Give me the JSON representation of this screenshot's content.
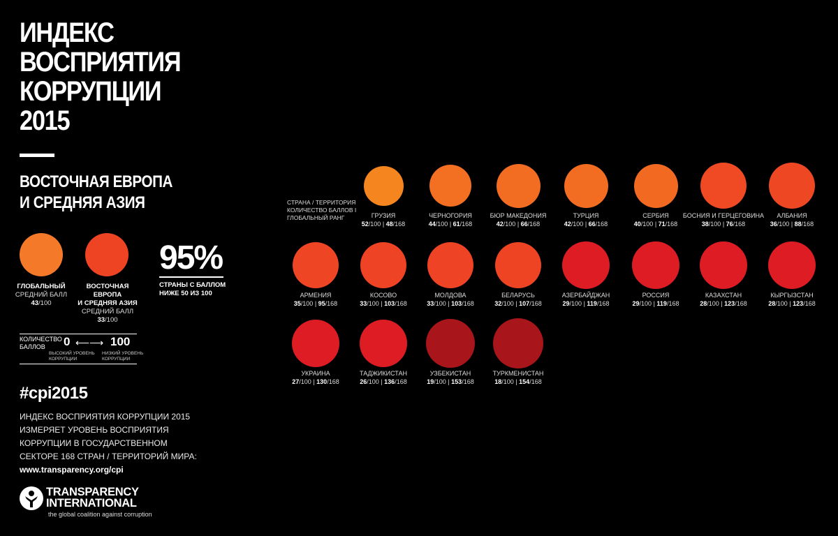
{
  "header": {
    "title_lines": [
      "ИНДЕКС",
      "ВОСПРИЯТИЯ",
      "КОРРУПЦИИ",
      "2015"
    ],
    "subtitle_lines": [
      "ВОСТОЧНАЯ ЕВРОПА",
      "И СРЕДНЯЯ АЗИЯ"
    ]
  },
  "averages": {
    "global": {
      "label": "ГЛОБАЛЬНЫЙ",
      "sub": "СРЕДНИЙ БАЛЛ",
      "score": "43",
      "max": "/100",
      "color": "#f47a2a"
    },
    "region": {
      "label_1": "ВОСТОЧНАЯ ЕВРОПА",
      "label_2": "И СРЕДНЯЯ АЗИЯ",
      "sub": "СРЕДНИЙ БАЛЛ",
      "score": "33",
      "max": "/100",
      "color": "#ee4424"
    }
  },
  "stat": {
    "value": "95%",
    "label": "СТРАНЫ С БАЛЛОМ НИЖЕ 50 ИЗ 100"
  },
  "scale": {
    "title": "КОЛИЧЕСТВО БАЛЛОВ",
    "low": "0",
    "high": "100",
    "arrow": "⟵⟶",
    "low_text": "ВЫСОКИЙ УРОВЕНЬ КОРРУПЦИИ",
    "high_text": "НИЗКИЙ УРОВЕНЬ КОРРУПЦИИ"
  },
  "hashtag": "#cpi2015",
  "description": {
    "text": "ИНДЕКС ВОСПРИЯТИЯ КОРРУПЦИИ 2015 ИЗМЕРЯЕТ УРОВЕНЬ ВОСПРИЯТИЯ КОРРУПЦИИ В ГОСУДАРСТВЕННОМ СЕКТОРЕ 168 СТРАН / ТЕРРИТОРИЙ МИРА: ",
    "url": "www.transparency.org/cpi"
  },
  "logo": {
    "line_1": "TRANSPARENCY",
    "line_2": "INTERNATIONAL",
    "tagline": "the global coalition against corruption"
  },
  "legend": "СТРАНА / ТЕРРИТОРИЯ КОЛИЧЕСТВО БАЛЛОВ I ГЛОБАЛЬНЫЙ РАНГ",
  "chart_data": {
    "type": "table",
    "score_max": "/100",
    "rank_total": "/168",
    "countries": [
      {
        "name": "ГРУЗИЯ",
        "score": 52,
        "rank": 48,
        "color": "#f5861f"
      },
      {
        "name": "ЧЕРНОГОРИЯ",
        "score": 44,
        "rank": 61,
        "color": "#f36f22"
      },
      {
        "name": "БЮР МАКЕДОНИЯ",
        "score": 42,
        "rank": 66,
        "color": "#f26d22"
      },
      {
        "name": "ТУРЦИЯ",
        "score": 42,
        "rank": 66,
        "color": "#f26d22"
      },
      {
        "name": "СЕРБИЯ",
        "score": 40,
        "rank": 71,
        "color": "#f26a22"
      },
      {
        "name": "БОСНИЯ И ГЕРЦЕГОВИНА",
        "score": 38,
        "rank": 76,
        "color": "#ef4a24"
      },
      {
        "name": "АЛБАНИЯ",
        "score": 36,
        "rank": 88,
        "color": "#ee4724"
      },
      {
        "name": "АРМЕНИЯ",
        "score": 35,
        "rank": 95,
        "color": "#ee4524"
      },
      {
        "name": "КОСОВО",
        "score": 33,
        "rank": 103,
        "color": "#ee4324"
      },
      {
        "name": "МОЛДОВА",
        "score": 33,
        "rank": 103,
        "color": "#ee4324"
      },
      {
        "name": "БЕЛАРУСЬ",
        "score": 32,
        "rank": 107,
        "color": "#ee4424"
      },
      {
        "name": "АЗЕРБАЙДЖАН",
        "score": 29,
        "rank": 119,
        "color": "#dd1c24"
      },
      {
        "name": "РОССИЯ",
        "score": 29,
        "rank": 119,
        "color": "#dd1c24"
      },
      {
        "name": "КАЗАХСТАН",
        "score": 28,
        "rank": 123,
        "color": "#dd1c24"
      },
      {
        "name": "КЫРГЫЗСТАН",
        "score": 28,
        "rank": 123,
        "color": "#dd1c24"
      },
      {
        "name": "УКРАИНА",
        "score": 27,
        "rank": 130,
        "color": "#dd1c24"
      },
      {
        "name": "ТАДЖИКИСТАН",
        "score": 26,
        "rank": 136,
        "color": "#dd1c24"
      },
      {
        "name": "УЗБЕКИСТАН",
        "score": 19,
        "rank": 153,
        "color": "#a8151b"
      },
      {
        "name": "ТУРКМЕНИСТАН",
        "score": 18,
        "rank": 154,
        "color": "#a8151b"
      }
    ]
  }
}
